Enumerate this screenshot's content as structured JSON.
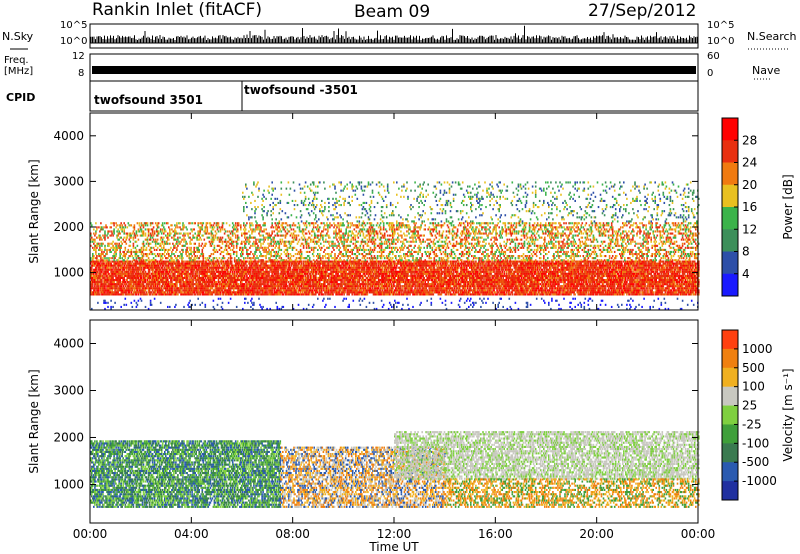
{
  "header": {
    "station": "Rankin Inlet (fitACF)",
    "beam": "Beam 09",
    "date": "27/Sep/2012"
  },
  "strip_labels": {
    "nsky": "N.Sky",
    "nsearch": "N.Search",
    "freq_line1": "Freq.",
    "freq_line2": "[MHz]",
    "nave": "Nave",
    "cpid": "CPID",
    "nsky_top": "10^5",
    "nsky_bottom": "10^0",
    "freq_top": "12",
    "freq_bottom": "8",
    "nave_top": "60",
    "nave_bottom": "0"
  },
  "cpid_segments": [
    {
      "label": "twofsound 3501",
      "start": 0.0
    },
    {
      "label": "twofsound -3501",
      "start": 6.0
    }
  ],
  "chart_data": [
    {
      "type": "heatmap",
      "name": "power",
      "xlabel": "",
      "ylabel": "Slant Range [km]",
      "xlim": [
        0,
        24
      ],
      "ylim": [
        180,
        4500
      ],
      "yticks": [
        1000,
        2000,
        3000,
        4000
      ],
      "colorbar": {
        "label": "Power [dB]",
        "ticks": [
          "4",
          "8",
          "12",
          "16",
          "20",
          "24",
          "28"
        ],
        "colors": [
          "#1a1aff",
          "#2d4fa8",
          "#3c8f5a",
          "#3bb34a",
          "#e8c020",
          "#f07a10",
          "#e83010",
          "#ff0000"
        ]
      }
    },
    {
      "type": "heatmap",
      "name": "velocity",
      "xlabel": "Time UT",
      "ylabel": "Slant Range [km]",
      "xlim": [
        0,
        24
      ],
      "ylim": [
        180,
        4500
      ],
      "xticks": [
        "00:00",
        "04:00",
        "08:00",
        "12:00",
        "16:00",
        "20:00",
        "00:00"
      ],
      "yticks": [
        1000,
        2000,
        3000,
        4000
      ],
      "colorbar": {
        "label": "Velocity [m s⁻¹]",
        "ticks": [
          "1000",
          "500",
          "100",
          "25",
          "-25",
          "-100",
          "-500",
          "-1000"
        ],
        "colors": [
          "#2030a0",
          "#2a5ab0",
          "#3a7a50",
          "#3f9f3a",
          "#7fd040",
          "#c8c8c0",
          "#f0b020",
          "#f08010",
          "#ff4010"
        ]
      }
    }
  ]
}
